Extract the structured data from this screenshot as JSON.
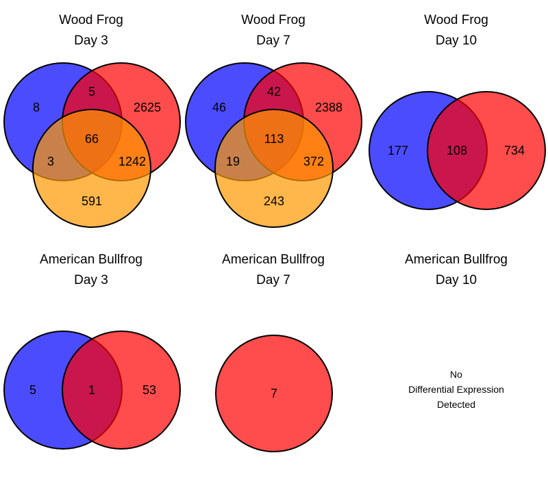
{
  "colors": {
    "set_a": "#0000ff",
    "set_b": "#ff0000",
    "set_c": "#ff9900",
    "outline": "#000000"
  },
  "panels": [
    {
      "species": "Wood Frog",
      "day": "Day 3",
      "regions": {
        "a_only": "8",
        "ab": "5",
        "b_only": "2625",
        "abc": "66",
        "ac": "3",
        "bc": "1242",
        "c_only": "591"
      }
    },
    {
      "species": "Wood Frog",
      "day": "Day 7",
      "regions": {
        "a_only": "46",
        "ab": "42",
        "b_only": "2388",
        "abc": "113",
        "ac": "19",
        "bc": "372",
        "c_only": "243"
      }
    },
    {
      "species": "Wood Frog",
      "day": "Day 10",
      "regions": {
        "a_only": "177",
        "ab": "108",
        "b_only": "734"
      }
    },
    {
      "species": "American Bullfrog",
      "day": "Day 3",
      "regions": {
        "a_only": "5",
        "ab": "1",
        "b_only": "53"
      }
    },
    {
      "species": "American Bullfrog",
      "day": "Day 7",
      "regions": {
        "b_only": "7"
      }
    },
    {
      "species": "American Bullfrog",
      "day": "Day 10",
      "message": [
        "No",
        "Differential Expression",
        "Detected"
      ]
    }
  ]
}
